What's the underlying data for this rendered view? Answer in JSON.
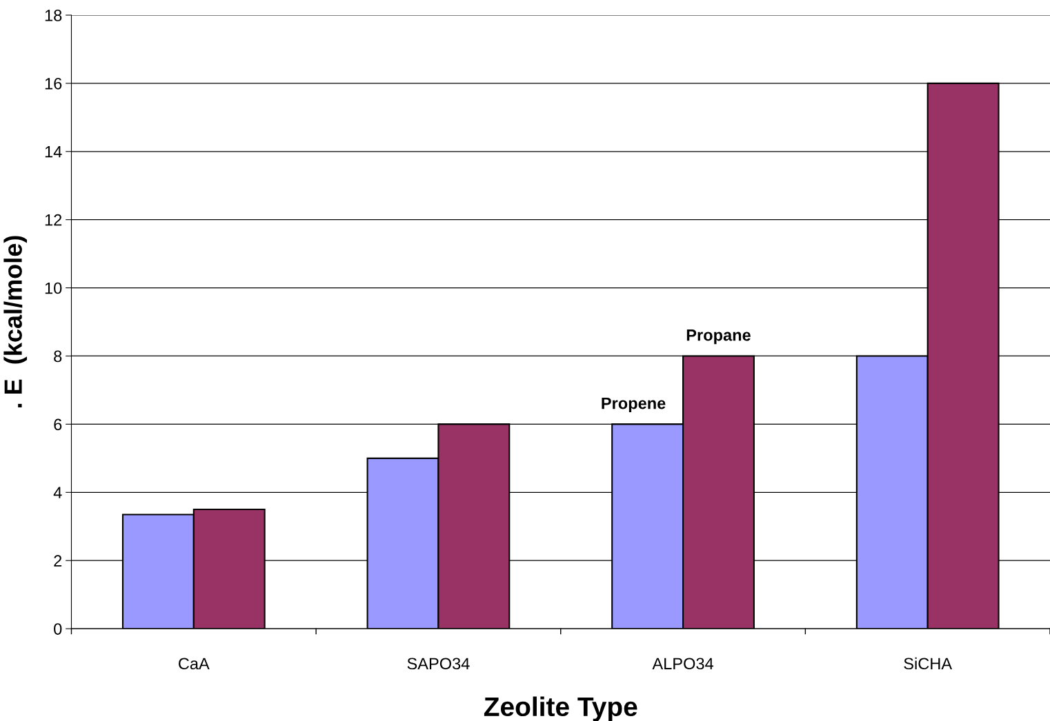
{
  "chart_data": {
    "type": "bar",
    "xlabel": "Zeolite Type",
    "ylabel": ". E  (kcal/mole)",
    "categories": [
      "CaA",
      "SAPO34",
      "ALPO34",
      "SiCHA"
    ],
    "series": [
      {
        "name": "Propene",
        "color": "#9999ff",
        "values": [
          3.35,
          5.0,
          6.0,
          8.0
        ]
      },
      {
        "name": "Propane",
        "color": "#993366",
        "values": [
          3.5,
          6.0,
          8.0,
          16.0
        ]
      }
    ],
    "ylim": [
      0,
      18
    ],
    "yticks": [
      0,
      2,
      4,
      6,
      8,
      10,
      12,
      14,
      16,
      18
    ],
    "grid": "y",
    "legend": false
  }
}
